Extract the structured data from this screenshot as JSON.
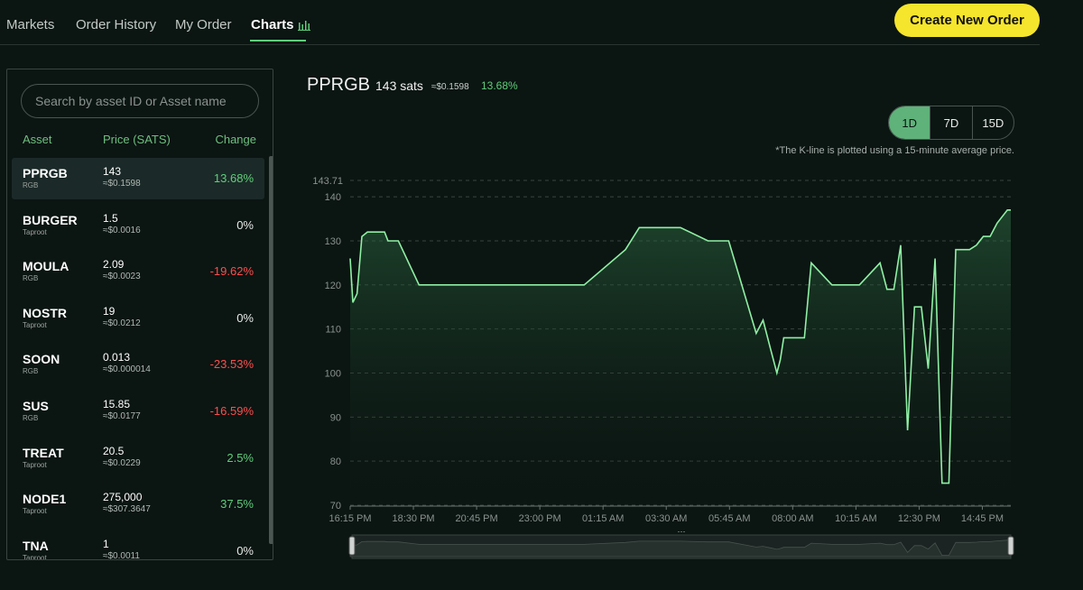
{
  "nav": {
    "tabs": [
      {
        "label": "Markets"
      },
      {
        "label": "Order History"
      },
      {
        "label": "My Order"
      },
      {
        "label": "Charts"
      }
    ],
    "create_label": "Create New Order"
  },
  "sidebar": {
    "search_placeholder": "Search by asset ID or Asset name",
    "headers": {
      "asset": "Asset",
      "price": "Price (SATS)",
      "change": "Change"
    },
    "rows": [
      {
        "name": "PPRGB",
        "type": "RGB",
        "price": "143",
        "usd": "≈$0.1598",
        "change": "13.68%",
        "trend": "up"
      },
      {
        "name": "BURGER",
        "type": "Taproot",
        "price": "1.5",
        "usd": "≈$0.0016",
        "change": "0%",
        "trend": "flat"
      },
      {
        "name": "MOULA",
        "type": "RGB",
        "price": "2.09",
        "usd": "≈$0.0023",
        "change": "-19.62%",
        "trend": "down"
      },
      {
        "name": "NOSTR",
        "type": "Taproot",
        "price": "19",
        "usd": "≈$0.0212",
        "change": "0%",
        "trend": "flat"
      },
      {
        "name": "SOON",
        "type": "RGB",
        "price": "0.013",
        "usd": "≈$0.000014",
        "change": "-23.53%",
        "trend": "down"
      },
      {
        "name": "SUS",
        "type": "RGB",
        "price": "15.85",
        "usd": "≈$0.0177",
        "change": "-16.59%",
        "trend": "down"
      },
      {
        "name": "TREAT",
        "type": "Taproot",
        "price": "20.5",
        "usd": "≈$0.0229",
        "change": "2.5%",
        "trend": "up"
      },
      {
        "name": "NODE1",
        "type": "Taproot",
        "price": "275,000",
        "usd": "≈$307.3647",
        "change": "37.5%",
        "trend": "up"
      },
      {
        "name": "TNA",
        "type": "Taproot",
        "price": "1",
        "usd": "≈$0.0011",
        "change": "0%",
        "trend": "flat"
      }
    ]
  },
  "main": {
    "symbol": "PPRGB",
    "sats": "143 sats",
    "usd": "≈$0.1598",
    "change": "13.68%",
    "ranges": [
      "1D",
      "7D",
      "15D"
    ],
    "active_range": "1D",
    "note": "*The K-line is plotted using a 15-minute average price."
  },
  "colors": {
    "accent": "#5fcf7a",
    "up": "#5fcf7a",
    "down": "#ff4d4d",
    "flat": "#e8ece9",
    "brand_button": "#f5e52c",
    "line": "#8ff0a4"
  },
  "chart_data": {
    "type": "area",
    "max_label": "143.71",
    "ylim": [
      70,
      143.71
    ],
    "yticks": [
      70,
      80,
      90,
      100,
      110,
      120,
      130,
      140
    ],
    "xticks": [
      "16:15 PM",
      "18:30 PM",
      "20:45 PM",
      "23:00 PM",
      "01:15 AM",
      "03:30 AM",
      "05:45 AM",
      "08:00 AM",
      "10:15 AM",
      "12:30 PM",
      "14:45 PM"
    ],
    "grid": true,
    "series": [
      {
        "x": [
          0,
          0.4,
          1,
          1.7,
          2.5,
          3.5,
          5,
          5.5,
          6,
          7,
          10,
          15,
          20,
          25,
          30,
          34,
          40,
          42,
          48,
          52,
          55,
          59,
          60,
          61,
          62,
          62.5,
          63,
          64,
          65,
          66,
          67,
          70,
          71,
          72,
          73,
          74,
          77,
          78,
          79,
          80,
          81,
          82,
          83,
          84,
          85,
          86,
          87,
          88,
          89,
          90,
          91,
          92,
          93,
          94,
          95.5,
          96
        ],
        "values": [
          126,
          116,
          118,
          131,
          132,
          132,
          132,
          130,
          130,
          130,
          120,
          120,
          120,
          120,
          120,
          120,
          128,
          133,
          133,
          130,
          130,
          109,
          112,
          106,
          100,
          103,
          108,
          108,
          108,
          108,
          125,
          120,
          120,
          120,
          120,
          120,
          125,
          119,
          119,
          129,
          87,
          115,
          115,
          101,
          126,
          75,
          75,
          128,
          128,
          128,
          129,
          131,
          131,
          134,
          137,
          137
        ]
      }
    ]
  }
}
